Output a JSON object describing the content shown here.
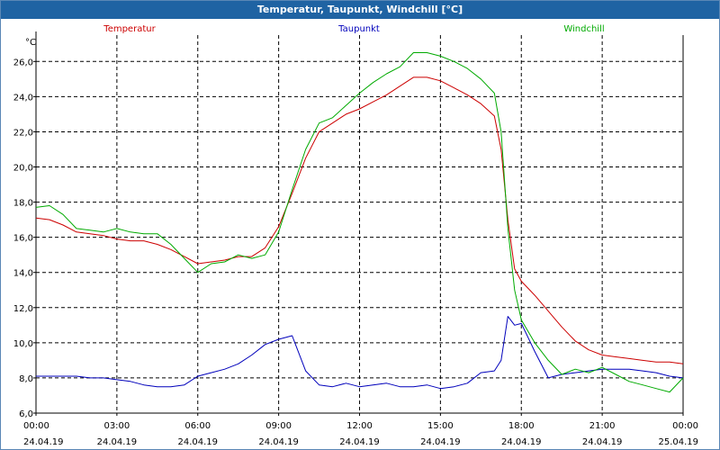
{
  "window": {
    "title": "Temperatur, Taupunkt, Windchill [°C]"
  },
  "chart_data": {
    "type": "line",
    "title": "Temperatur, Taupunkt, Windchill [°C]",
    "ylabel": "°C",
    "ylim": [
      6.0,
      27.5
    ],
    "xlim": [
      0,
      24
    ],
    "grid": true,
    "yticks": [
      {
        "v": 6,
        "label": "6,0"
      },
      {
        "v": 8,
        "label": "8,0"
      },
      {
        "v": 10,
        "label": "10,0"
      },
      {
        "v": 12,
        "label": "12,0"
      },
      {
        "v": 14,
        "label": "14,0"
      },
      {
        "v": 16,
        "label": "16,0"
      },
      {
        "v": 18,
        "label": "18,0"
      },
      {
        "v": 20,
        "label": "20,0"
      },
      {
        "v": 22,
        "label": "22,0"
      },
      {
        "v": 24,
        "label": "24,0"
      },
      {
        "v": 26,
        "label": "26,0"
      }
    ],
    "xticks": [
      {
        "v": 0,
        "time": "00:00",
        "date": "24.04.19"
      },
      {
        "v": 3,
        "time": "03:00",
        "date": "24.04.19"
      },
      {
        "v": 6,
        "time": "06:00",
        "date": "24.04.19"
      },
      {
        "v": 9,
        "time": "09:00",
        "date": "24.04.19"
      },
      {
        "v": 12,
        "time": "12:00",
        "date": "24.04.19"
      },
      {
        "v": 15,
        "time": "15:00",
        "date": "24.04.19"
      },
      {
        "v": 18,
        "time": "18:00",
        "date": "24.04.19"
      },
      {
        "v": 21,
        "time": "21:00",
        "date": "24.04.19"
      },
      {
        "v": 24,
        "time": "00:00",
        "date": "25.04.19"
      }
    ],
    "series": [
      {
        "name": "Temperatur",
        "color": "#cc0000",
        "x": [
          0,
          0.5,
          1,
          1.5,
          2,
          2.5,
          3,
          3.5,
          4,
          4.5,
          5,
          5.5,
          6,
          6.5,
          7,
          7.5,
          8,
          8.5,
          9,
          9.5,
          10,
          10.5,
          11,
          11.5,
          12,
          12.5,
          13,
          13.5,
          14,
          14.5,
          15,
          15.5,
          16,
          16.5,
          17,
          17.25,
          17.5,
          17.75,
          18,
          18.5,
          19,
          19.5,
          20,
          20.5,
          21,
          21.5,
          22,
          22.5,
          23,
          23.5,
          24
        ],
        "values": [
          17.1,
          17.0,
          16.7,
          16.3,
          16.2,
          16.1,
          15.9,
          15.8,
          15.8,
          15.6,
          15.3,
          14.9,
          14.5,
          14.6,
          14.7,
          14.9,
          14.9,
          15.4,
          16.6,
          18.5,
          20.5,
          22.0,
          22.5,
          23.0,
          23.3,
          23.7,
          24.1,
          24.6,
          25.1,
          25.1,
          24.9,
          24.5,
          24.1,
          23.6,
          22.9,
          21.0,
          17.0,
          14.2,
          13.5,
          12.7,
          11.8,
          10.9,
          10.1,
          9.6,
          9.3,
          9.2,
          9.1,
          9.0,
          8.9,
          8.9,
          8.8
        ]
      },
      {
        "name": "Taupunkt",
        "color": "#0000bb",
        "x": [
          0,
          0.5,
          1,
          1.5,
          2,
          2.5,
          3,
          3.5,
          4,
          4.5,
          5,
          5.5,
          6,
          6.5,
          7,
          7.5,
          8,
          8.5,
          9,
          9.5,
          10,
          10.5,
          11,
          11.5,
          12,
          12.5,
          13,
          13.5,
          14,
          14.5,
          15,
          15.5,
          16,
          16.5,
          17,
          17.25,
          17.5,
          17.75,
          18,
          18.5,
          19,
          19.5,
          20,
          20.5,
          21,
          21.5,
          22,
          22.5,
          23,
          23.5,
          24
        ],
        "values": [
          8.1,
          8.1,
          8.1,
          8.1,
          8.0,
          8.0,
          7.9,
          7.8,
          7.6,
          7.5,
          7.5,
          7.6,
          8.1,
          8.3,
          8.5,
          8.8,
          9.3,
          9.9,
          10.2,
          10.4,
          8.4,
          7.6,
          7.5,
          7.7,
          7.5,
          7.6,
          7.7,
          7.5,
          7.5,
          7.6,
          7.4,
          7.5,
          7.7,
          8.3,
          8.4,
          9.0,
          11.5,
          11.0,
          11.1,
          9.5,
          8.0,
          8.2,
          8.3,
          8.4,
          8.5,
          8.5,
          8.5,
          8.4,
          8.3,
          8.1,
          8.0
        ]
      },
      {
        "name": "Windchill",
        "color": "#00aa00",
        "x": [
          0,
          0.5,
          1,
          1.5,
          2,
          2.5,
          3,
          3.5,
          4,
          4.5,
          5,
          5.5,
          6,
          6.5,
          7,
          7.5,
          8,
          8.5,
          9,
          9.5,
          10,
          10.5,
          11,
          11.5,
          12,
          12.5,
          13,
          13.5,
          14,
          14.5,
          15,
          15.5,
          16,
          16.5,
          17,
          17.25,
          17.5,
          17.75,
          18,
          18.5,
          19,
          19.5,
          20,
          20.5,
          21,
          21.5,
          22,
          22.5,
          23,
          23.5,
          24
        ],
        "values": [
          17.7,
          17.8,
          17.3,
          16.5,
          16.4,
          16.3,
          16.5,
          16.3,
          16.2,
          16.2,
          15.6,
          14.8,
          14.0,
          14.5,
          14.6,
          15.0,
          14.8,
          15.0,
          16.3,
          18.7,
          21.0,
          22.5,
          22.8,
          23.5,
          24.2,
          24.8,
          25.3,
          25.7,
          26.5,
          26.5,
          26.3,
          26.0,
          25.6,
          25.0,
          24.2,
          22.0,
          16.5,
          13.0,
          11.3,
          10.0,
          9.0,
          8.2,
          8.5,
          8.3,
          8.6,
          8.2,
          7.8,
          7.6,
          7.4,
          7.2,
          8.0
        ]
      }
    ]
  }
}
